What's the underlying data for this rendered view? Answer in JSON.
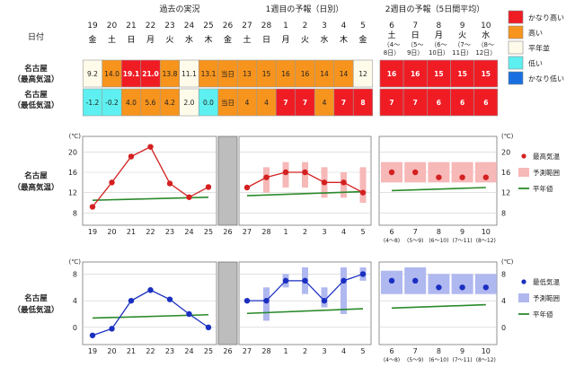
{
  "header": {
    "past_title": "過去の実況",
    "week1_title": "1週目の予報（日別）",
    "week2_title": "2週目の予報（5日間平均）",
    "date_label": "日付"
  },
  "legend_top": [
    {
      "label": "かなり高い",
      "color": "#f01c24"
    },
    {
      "label": "高い",
      "color": "#f7941d"
    },
    {
      "label": "平年並",
      "color": "#fffbea"
    },
    {
      "label": "低い",
      "color": "#5ef0f0"
    },
    {
      "label": "かなり低い",
      "color": "#1a6fe0"
    }
  ],
  "rows": [
    {
      "name": "名古屋",
      "sub": "（最高気温）"
    },
    {
      "name": "名古屋",
      "sub": "（最低気温）"
    }
  ],
  "today_label": "当日",
  "colors": {
    "very_high": "#f01c24",
    "high": "#f7941d",
    "normal": "#fffbea",
    "low": "#5ef0f0",
    "very_low": "#1a6fe0",
    "max_line": "#d42020",
    "min_line": "#1a2fc0",
    "normal_line": "#2a8a2a",
    "max_band": "#f7b8b8",
    "min_band": "#b0b8f0",
    "today_col": "#bdbdbd"
  },
  "days": [
    {
      "day": "19",
      "wd": "金",
      "wdc": "#000000",
      "max": "9.2",
      "maxc": "normal",
      "min": "-1.2",
      "minc": "low"
    },
    {
      "day": "20",
      "wd": "土",
      "wdc": "#000000",
      "max": "14.0",
      "maxc": "high",
      "min": "-0.2",
      "minc": "low"
    },
    {
      "day": "21",
      "wd": "日",
      "wdc": "#000000",
      "max": "19.1",
      "maxc": "very_high",
      "min": "4.0",
      "minc": "high"
    },
    {
      "day": "22",
      "wd": "月",
      "wdc": "#000000",
      "max": "21.0",
      "maxc": "very_high",
      "min": "5.6",
      "minc": "high"
    },
    {
      "day": "23",
      "wd": "火",
      "wdc": "#000000",
      "max": "13.8",
      "maxc": "high",
      "min": "4.2",
      "minc": "high"
    },
    {
      "day": "24",
      "wd": "水",
      "wdc": "#000000",
      "max": "11.1",
      "maxc": "normal",
      "min": "2.0",
      "minc": "normal"
    },
    {
      "day": "25",
      "wd": "木",
      "wdc": "#000000",
      "max": "13.1",
      "maxc": "high",
      "min": "0.0",
      "minc": "low"
    },
    {
      "day": "26",
      "wd": "金",
      "wdc": "#000000",
      "max": "当日",
      "maxc": "high",
      "min": "当日",
      "minc": "high"
    },
    {
      "day": "27",
      "wd": "土",
      "wdc": "#000000",
      "max": "13",
      "maxc": "high",
      "min": "4",
      "minc": "high"
    },
    {
      "day": "28",
      "wd": "日",
      "wdc": "#000000",
      "max": "15",
      "maxc": "high",
      "min": "4",
      "minc": "high"
    },
    {
      "day": "1",
      "wd": "月",
      "wdc": "#000000",
      "max": "16",
      "maxc": "high",
      "min": "7",
      "minc": "very_high"
    },
    {
      "day": "2",
      "wd": "火",
      "wdc": "#000000",
      "max": "16",
      "maxc": "high",
      "min": "7",
      "minc": "very_high"
    },
    {
      "day": "3",
      "wd": "水",
      "wdc": "#000000",
      "max": "14",
      "maxc": "high",
      "min": "4",
      "minc": "high"
    },
    {
      "day": "4",
      "wd": "木",
      "wdc": "#000000",
      "max": "14",
      "maxc": "high",
      "min": "7",
      "minc": "very_high"
    },
    {
      "day": "5",
      "wd": "金",
      "wdc": "#000000",
      "max": "12",
      "maxc": "normal",
      "min": "8",
      "minc": "very_high"
    }
  ],
  "week2": [
    {
      "day": "6",
      "wd": "土",
      "wdc": "#000000",
      "range": "（4〜",
      "range2": "8日）",
      "max": "16",
      "min": "7"
    },
    {
      "day": "7",
      "wd": "日",
      "wdc": "#000000",
      "range": "（5〜",
      "range2": "9日）",
      "max": "16",
      "min": "7"
    },
    {
      "day": "8",
      "wd": "月",
      "wdc": "#000000",
      "range": "（6〜",
      "range2": "10日）",
      "max": "15",
      "min": "6"
    },
    {
      "day": "9",
      "wd": "火",
      "wdc": "#000000",
      "range": "（7〜",
      "range2": "11日）",
      "max": "15",
      "min": "6"
    },
    {
      "day": "10",
      "wd": "水",
      "wdc": "#000000",
      "range": "（8〜",
      "range2": "12日）",
      "max": "15",
      "min": "6"
    }
  ],
  "legend_max": {
    "point": "最高気温",
    "band": "予測範囲",
    "normal": "平年値"
  },
  "legend_min": {
    "point": "最低気温",
    "band": "予測範囲",
    "normal": "平年値"
  },
  "chart_data": [
    {
      "type": "line",
      "title": "名古屋（最高気温）",
      "ylabel": "(℃)",
      "ylim": [
        7,
        22
      ],
      "yticks": [
        8,
        12,
        16,
        20
      ],
      "x": [
        "19",
        "20",
        "21",
        "22",
        "23",
        "24",
        "25",
        "26",
        "27",
        "28",
        "1",
        "2",
        "3",
        "4",
        "5"
      ],
      "series": [
        {
          "name": "最高気温",
          "past": [
            9.2,
            14.0,
            19.1,
            21.0,
            13.8,
            11.1,
            13.1
          ],
          "forecast": [
            13,
            15,
            16,
            16,
            14,
            14,
            12
          ],
          "forecast_range": [
            [
              13,
              13
            ],
            [
              12,
              17
            ],
            [
              13,
              18
            ],
            [
              13,
              18
            ],
            [
              11,
              17
            ],
            [
              11,
              16
            ],
            [
              10,
              17
            ]
          ]
        },
        {
          "name": "平年値",
          "past": [
            10.5,
            11.1
          ],
          "forecast": [
            11.4,
            12.2
          ],
          "week2": [
            12.4,
            13.0
          ]
        }
      ],
      "week2_x": [
        "6",
        "7",
        "8",
        "9",
        "10"
      ],
      "week2_x_sub": [
        "(4〜8)",
        "(5〜9)",
        "(6〜10)",
        "(7〜11)",
        "(8〜12)"
      ],
      "week2_values": [
        16,
        16,
        15,
        15,
        15
      ],
      "week2_range": [
        [
          14,
          18
        ],
        [
          14,
          18
        ],
        [
          14,
          18
        ],
        [
          14,
          18
        ],
        [
          14,
          18
        ]
      ]
    },
    {
      "type": "line",
      "title": "名古屋（最低気温）",
      "ylabel": "(℃)",
      "ylim": [
        -1.5,
        9
      ],
      "yticks": [
        0,
        4,
        8
      ],
      "x": [
        "19",
        "20",
        "21",
        "22",
        "23",
        "24",
        "25",
        "26",
        "27",
        "28",
        "1",
        "2",
        "3",
        "4",
        "5"
      ],
      "series": [
        {
          "name": "最低気温",
          "past": [
            -1.2,
            -0.2,
            4.0,
            5.6,
            4.2,
            2.0,
            0.0
          ],
          "forecast": [
            4,
            4,
            7,
            7,
            4,
            7,
            8
          ],
          "forecast_range": [
            [
              4,
              4
            ],
            [
              1,
              6
            ],
            [
              6,
              8
            ],
            [
              5,
              9
            ],
            [
              3,
              6
            ],
            [
              2,
              9
            ],
            [
              7,
              9
            ]
          ]
        },
        {
          "name": "平年値",
          "past": [
            1.4,
            1.9
          ],
          "forecast": [
            2.1,
            2.8
          ],
          "week2": [
            2.9,
            3.4
          ]
        }
      ],
      "week2_x": [
        "6",
        "7",
        "8",
        "9",
        "10"
      ],
      "week2_x_sub": [
        "(4〜8)",
        "(5〜9)",
        "(6〜10)",
        "(7〜11)",
        "(8〜12)"
      ],
      "week2_values": [
        7,
        7,
        6,
        6,
        6
      ],
      "week2_range": [
        [
          5,
          8.5
        ],
        [
          5,
          9
        ],
        [
          5,
          8
        ],
        [
          5,
          8
        ],
        [
          5,
          8
        ]
      ]
    }
  ]
}
